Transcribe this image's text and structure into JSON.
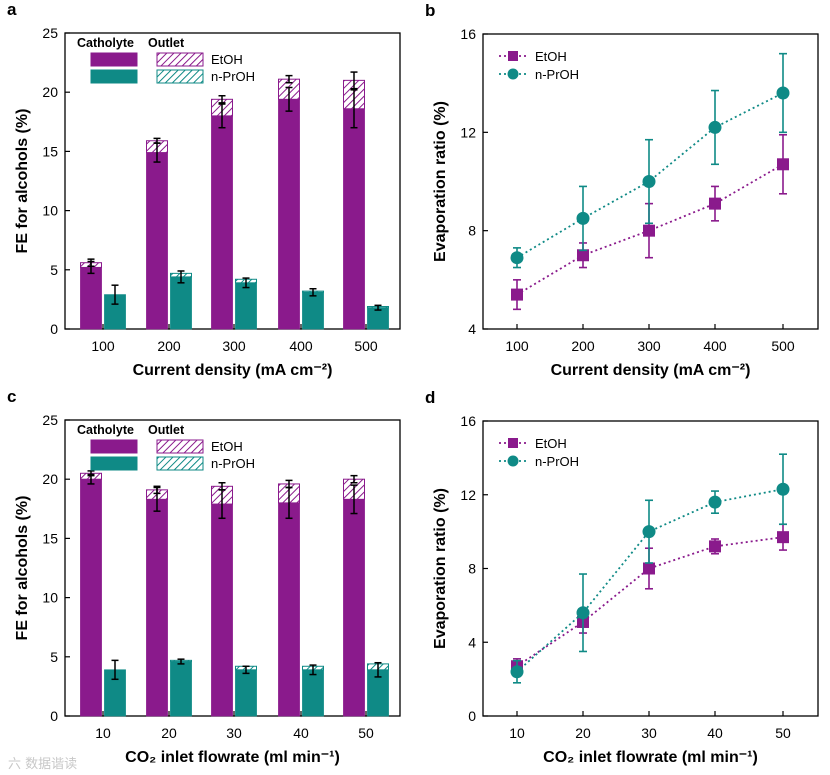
{
  "colors": {
    "etoh": "#8a1a8c",
    "nproh": "#0f8a86",
    "axis": "#000000"
  },
  "watermark": "六 数据谐读",
  "chart_data": [
    {
      "panel": "a",
      "type": "bar",
      "stacked_hatched_top": true,
      "xlabel": "Current density (mA cm⁻²)",
      "ylabel": "FE for alcohols (%)",
      "categories": [
        "100",
        "200",
        "300",
        "400",
        "500"
      ],
      "ylim": [
        0,
        25
      ],
      "yticks": [
        0,
        5,
        10,
        15,
        20,
        25
      ],
      "legend_header": [
        "Catholyte",
        "Outlet"
      ],
      "series": [
        {
          "name": "EtOH",
          "color_key": "etoh",
          "catholyte": [
            5.2,
            14.9,
            18.0,
            19.4,
            18.6
          ],
          "outlet": [
            0.4,
            1.0,
            1.4,
            1.7,
            2.4
          ],
          "err_catholyte": [
            0.5,
            0.8,
            1.0,
            1.0,
            1.6
          ],
          "err_total": [
            0.3,
            0.2,
            0.3,
            0.3,
            0.7
          ]
        },
        {
          "name": "n-PrOH",
          "color_key": "nproh",
          "catholyte": [
            2.9,
            4.4,
            3.9,
            3.1,
            1.8
          ],
          "outlet": [
            0.0,
            0.3,
            0.3,
            0.1,
            0.1
          ],
          "err_catholyte": [
            0.8,
            0.5,
            0.4,
            0.3,
            0.2
          ],
          "err_total": [
            0,
            0,
            0,
            0,
            0
          ]
        }
      ]
    },
    {
      "panel": "b",
      "type": "line",
      "xlabel": "Current density (mA cm⁻²)",
      "ylabel": "Evaporation ratio (%)",
      "categories": [
        "100",
        "200",
        "300",
        "400",
        "500"
      ],
      "ylim": [
        4,
        16
      ],
      "yticks": [
        4,
        8,
        12,
        16
      ],
      "series": [
        {
          "name": "EtOH",
          "marker": "square",
          "color_key": "etoh",
          "values": [
            5.4,
            7.0,
            8.0,
            9.1,
            10.7
          ],
          "errors": [
            0.6,
            0.5,
            1.1,
            0.7,
            1.2
          ]
        },
        {
          "name": "n-PrOH",
          "marker": "circle",
          "color_key": "nproh",
          "values": [
            6.9,
            8.5,
            10.0,
            12.2,
            13.6
          ],
          "errors": [
            0.4,
            1.3,
            1.7,
            1.5,
            1.6
          ]
        }
      ]
    },
    {
      "panel": "c",
      "type": "bar",
      "stacked_hatched_top": true,
      "xlabel": "CO₂ inlet flowrate (ml min⁻¹)",
      "ylabel": "FE for alcohols (%)",
      "categories": [
        "10",
        "20",
        "30",
        "40",
        "50"
      ],
      "ylim": [
        0,
        25
      ],
      "yticks": [
        0,
        5,
        10,
        15,
        20,
        25
      ],
      "legend_header": [
        "Catholyte",
        "Outlet"
      ],
      "series": [
        {
          "name": "EtOH",
          "color_key": "etoh",
          "catholyte": [
            20.0,
            18.3,
            17.9,
            18.0,
            18.3
          ],
          "outlet": [
            0.5,
            0.8,
            1.5,
            1.6,
            1.7
          ],
          "err_catholyte": [
            0.4,
            1.0,
            1.2,
            1.3,
            1.2
          ],
          "err_total": [
            0.2,
            0.3,
            0.3,
            0.3,
            0.3
          ]
        },
        {
          "name": "n-PrOH",
          "color_key": "nproh",
          "catholyte": [
            3.9,
            4.6,
            3.9,
            3.9,
            3.9
          ],
          "outlet": [
            0.0,
            0.1,
            0.3,
            0.3,
            0.5
          ],
          "err_catholyte": [
            0.8,
            0.2,
            0.3,
            0.4,
            0.6
          ],
          "err_total": [
            0,
            0,
            0,
            0,
            0
          ]
        }
      ]
    },
    {
      "panel": "d",
      "type": "line",
      "xlabel": "CO₂ inlet flowrate (ml min⁻¹)",
      "ylabel": "Evaporation ratio (%)",
      "categories": [
        "10",
        "20",
        "30",
        "40",
        "50"
      ],
      "ylim": [
        0,
        16
      ],
      "yticks": [
        0,
        4,
        8,
        12,
        16
      ],
      "series": [
        {
          "name": "EtOH",
          "marker": "square",
          "color_key": "etoh",
          "values": [
            2.7,
            5.1,
            8.0,
            9.2,
            9.7
          ],
          "errors": [
            0.4,
            0.6,
            1.1,
            0.4,
            0.7
          ]
        },
        {
          "name": "n-PrOH",
          "marker": "circle",
          "color_key": "nproh",
          "values": [
            2.4,
            5.6,
            10.0,
            11.6,
            12.3
          ],
          "errors": [
            0.6,
            2.1,
            1.7,
            0.6,
            1.9
          ]
        }
      ]
    }
  ]
}
